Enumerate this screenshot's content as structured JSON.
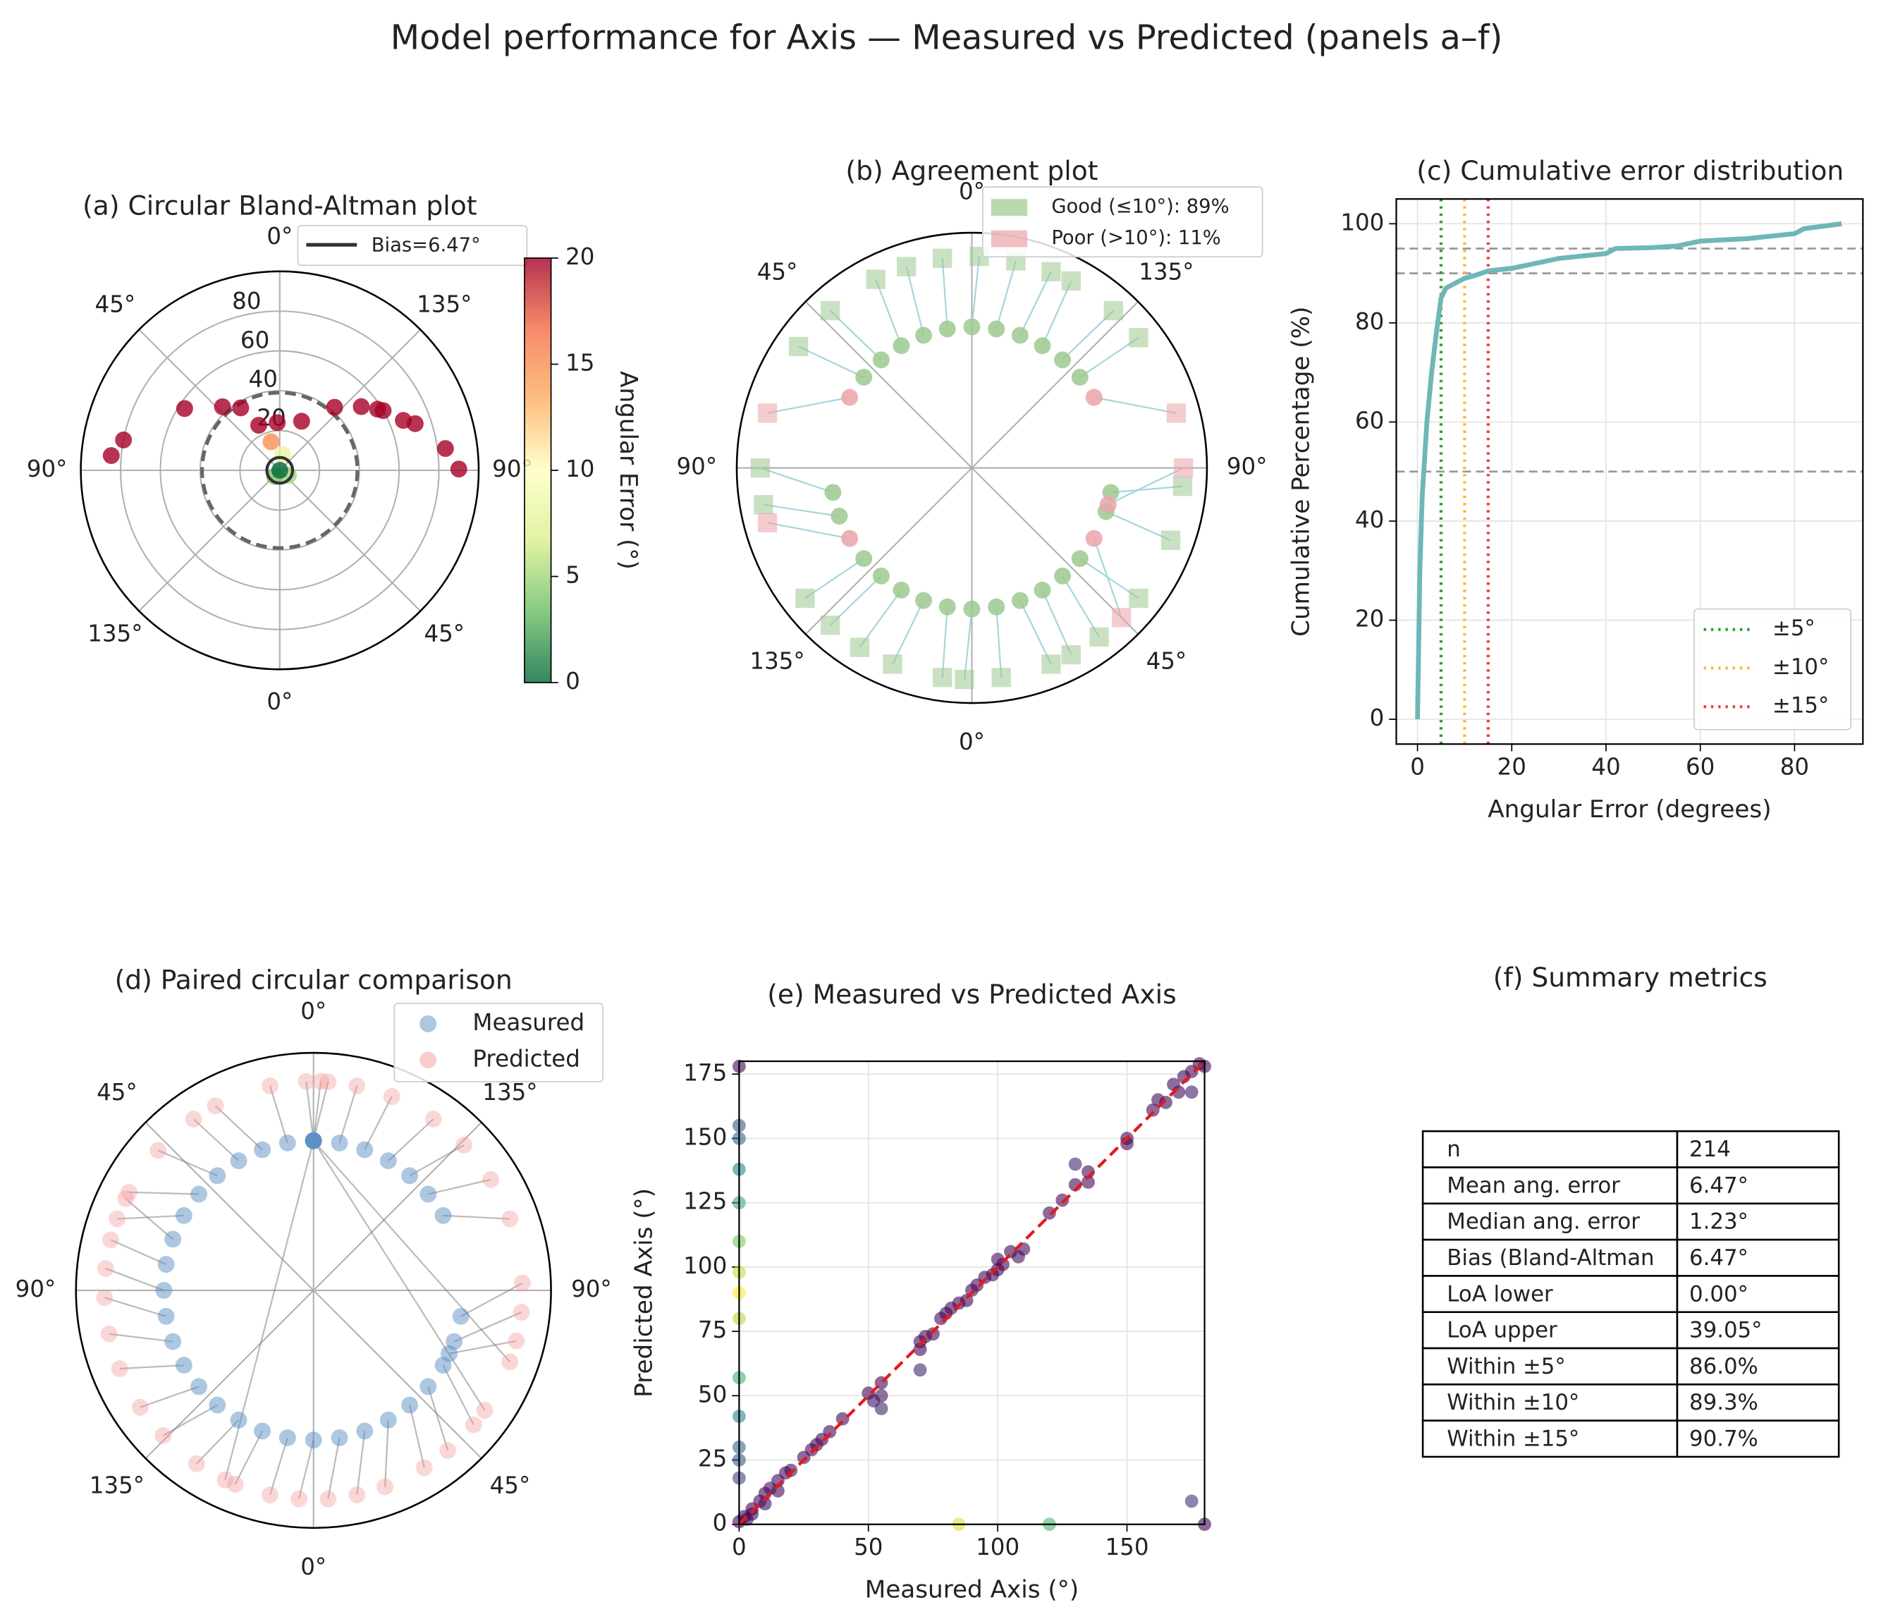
{
  "title": "Model performance for Axis — Measured vs Predicted (panels a–f)",
  "chart_data": [
    {
      "type": "polar_scatter",
      "title": "(a) Circular Bland-Altman plot",
      "theta": [
        275,
        281,
        303,
        318,
        328,
        335,
        357,
        24,
        41,
        52,
        58,
        60,
        68,
        71,
        82.5,
        89.6,
        343,
        10,
        120,
        220,
        0
      ],
      "r": [
        85,
        80,
        57,
        43,
        37,
        25,
        24,
        27,
        42,
        52,
        58,
        60,
        67,
        72,
        84,
        90,
        15,
        8,
        5,
        4,
        0
      ],
      "rlim": [
        0,
        100
      ],
      "rticks": [
        20,
        40,
        60,
        80
      ],
      "theta_ticks": [
        {
          "value": 0,
          "label": "0°"
        },
        {
          "value": 45,
          "label": "135°"
        },
        {
          "value": 90,
          "label": "90°"
        },
        {
          "value": 135,
          "label": "45°"
        },
        {
          "value": 180,
          "label": "0°"
        },
        {
          "value": 225,
          "label": "135°"
        },
        {
          "value": 270,
          "label": "90°"
        },
        {
          "value": 315,
          "label": "45°"
        }
      ],
      "colormap": "RdYlGn_r",
      "clim": [
        0,
        20
      ],
      "cticks": [
        0,
        5,
        10,
        15,
        20
      ],
      "colorbar_label": "Angular Error (°)",
      "bias": 6.47,
      "bias_label": "Bias=6.47°",
      "loa_upper": 39.05
    },
    {
      "type": "polar_pairs",
      "title": "(b) Agreement plot",
      "rlim": [
        0,
        1
      ],
      "r_measured": 0.6,
      "r_predicted": 0.9,
      "theta_ticks": [
        {
          "value": 0,
          "label": "0°"
        },
        {
          "value": 45,
          "label": "135°"
        },
        {
          "value": 90,
          "label": "90°"
        },
        {
          "value": 135,
          "label": "45°"
        },
        {
          "value": 180,
          "label": "0°"
        },
        {
          "value": 225,
          "label": "135°"
        },
        {
          "value": 270,
          "label": "90°"
        },
        {
          "value": 315,
          "label": "45°"
        }
      ],
      "series": [
        {
          "name": "Good (≤10°): 89%",
          "color": "#9cc98f",
          "theta_measured": [
            310,
            320,
            330,
            340,
            350,
            0,
            10,
            20,
            30,
            40,
            50,
            130,
            140,
            150,
            160,
            170,
            180,
            190,
            200,
            210,
            220,
            230,
            250,
            260,
            100,
            108
          ],
          "theta_predicted": [
            305,
            318,
            333,
            342,
            352,
            2,
            12,
            22,
            28,
            42,
            52,
            128,
            143,
            152,
            158,
            172,
            182,
            188,
            202,
            212,
            222,
            232,
            260,
            270,
            95,
            110
          ]
        },
        {
          "name": "Poor (>10°): 11%",
          "color": "#eba3a8",
          "theta_measured": [
            60,
            300,
            240,
            120,
            105
          ],
          "theta_predicted": [
            75,
            285,
            255,
            135,
            90
          ]
        }
      ]
    },
    {
      "type": "line",
      "title": "(c) Cumulative error distribution",
      "xlabel": "Angular Error (degrees)",
      "ylabel": "Cumulative Percentage (%)",
      "x": [
        0,
        0.5,
        1,
        2,
        3,
        4,
        5,
        6,
        8,
        10,
        12,
        15,
        20,
        25,
        30,
        40,
        42,
        50,
        55,
        60,
        70,
        80,
        82,
        90
      ],
      "values": [
        0,
        30,
        45,
        60,
        70,
        78,
        85,
        87,
        88,
        89,
        89.5,
        90.5,
        91,
        92,
        93,
        94,
        95,
        95.2,
        95.5,
        96.5,
        97,
        98,
        99,
        100
      ],
      "color": "#6fb7b7",
      "xlim": [
        -4.5,
        94.5
      ],
      "ylim": [
        -5,
        105
      ],
      "xticks": [
        0,
        20,
        40,
        60,
        80
      ],
      "yticks": [
        0,
        20,
        40,
        60,
        80,
        100
      ],
      "grid": true,
      "hlines": [
        50,
        90,
        95
      ],
      "vlines": [
        {
          "x": 5,
          "label": "±5°",
          "color": "#2ca02c"
        },
        {
          "x": 10,
          "label": "±10°",
          "color": "#ffb833"
        },
        {
          "x": 15,
          "label": "±15°",
          "color": "#f03c3c"
        }
      ],
      "legend": "lower right"
    },
    {
      "type": "polar_paired",
      "title": "(d) Paired circular comparison",
      "rlim": [
        0,
        1
      ],
      "theta_ticks": [
        {
          "value": 0,
          "label": "0°"
        },
        {
          "value": 45,
          "label": "135°"
        },
        {
          "value": 90,
          "label": "90°"
        },
        {
          "value": 135,
          "label": "45°"
        },
        {
          "value": 180,
          "label": "0°"
        },
        {
          "value": 225,
          "label": "135°"
        },
        {
          "value": 270,
          "label": "90°"
        },
        {
          "value": 315,
          "label": "45°"
        }
      ],
      "series": [
        {
          "name": "Measured",
          "color": "#5b8fc4",
          "r": 0.63,
          "theta": [
            300,
            310,
            320,
            330,
            340,
            350,
            0,
            0,
            0,
            10,
            20,
            30,
            40,
            50,
            60,
            120,
            130,
            140,
            150,
            160,
            170,
            180,
            190,
            200,
            210,
            220,
            230,
            240,
            250,
            260,
            270,
            280,
            290,
            100,
            110,
            115,
            0,
            0,
            0
          ]
        },
        {
          "name": "Predicted",
          "color": "#f29a9a",
          "r": 0.88,
          "theta": [
            290,
            298,
            312,
            325,
            332,
            348,
            358,
            2,
            4,
            12,
            22,
            35,
            46,
            58,
            70,
            130,
            140,
            148,
            160,
            168,
            176,
            184,
            192,
            202,
            214,
            226,
            236,
            248,
            258,
            268,
            276,
            284,
            296,
            88,
            96,
            104,
            125,
            110,
            205
          ]
        }
      ]
    },
    {
      "type": "scatter",
      "title": "(e) Measured vs Predicted Axis",
      "xlabel": "Measured Axis (°)",
      "ylabel": "Predicted Axis (°)",
      "x": [
        0,
        2,
        3,
        5,
        5,
        8,
        10,
        10,
        12,
        15,
        15,
        18,
        20,
        25,
        28,
        30,
        32,
        35,
        40,
        50,
        52,
        55,
        55,
        70,
        70,
        72,
        75,
        78,
        80,
        82,
        85,
        88,
        90,
        92,
        95,
        98,
        100,
        100,
        102,
        105,
        108,
        110,
        120,
        125,
        130,
        135,
        135,
        150,
        150,
        160,
        162,
        165,
        168,
        170,
        172,
        175,
        178,
        180,
        0,
        0,
        0,
        0,
        0,
        0,
        0,
        0,
        0,
        0,
        0,
        0,
        0,
        0,
        85,
        120,
        175,
        180,
        70,
        55,
        130,
        175
      ],
      "y": [
        1,
        3,
        2,
        6,
        4,
        9,
        12,
        8,
        14,
        17,
        13,
        20,
        21,
        26,
        29,
        31,
        33,
        36,
        41,
        51,
        48,
        55,
        50,
        71,
        68,
        73,
        74,
        80,
        82,
        84,
        86,
        87,
        91,
        93,
        96,
        97,
        99,
        103,
        101,
        106,
        104,
        107,
        121,
        126,
        132,
        137,
        133,
        150,
        148,
        161,
        165,
        164,
        171,
        168,
        174,
        176,
        179,
        178,
        155,
        150,
        138,
        125,
        110,
        98,
        90,
        80,
        57,
        42,
        30,
        25,
        18,
        178,
        0,
        0,
        9,
        0,
        60,
        45,
        140,
        168
      ],
      "colormap": "viridis",
      "clim": [
        0,
        90
      ],
      "xlim": [
        0,
        180
      ],
      "ylim": [
        0,
        180
      ],
      "xticks": [
        0,
        50,
        100,
        150
      ],
      "yticks": [
        0,
        25,
        50,
        75,
        100,
        125,
        150,
        175
      ],
      "grid": true,
      "identity_line": true
    },
    {
      "type": "table",
      "title": "(f) Summary metrics",
      "rows": [
        [
          "n",
          "214"
        ],
        [
          "Mean ang. error",
          "6.47°"
        ],
        [
          "Median ang. error",
          "1.23°"
        ],
        [
          "Bias (Bland-Altman",
          "6.47°"
        ],
        [
          "LoA lower",
          "0.00°"
        ],
        [
          "LoA upper",
          "39.05°"
        ],
        [
          "Within ±5°",
          "86.0%"
        ],
        [
          "Within ±10°",
          "89.3%"
        ],
        [
          "Within ±15°",
          "90.7%"
        ]
      ]
    }
  ]
}
